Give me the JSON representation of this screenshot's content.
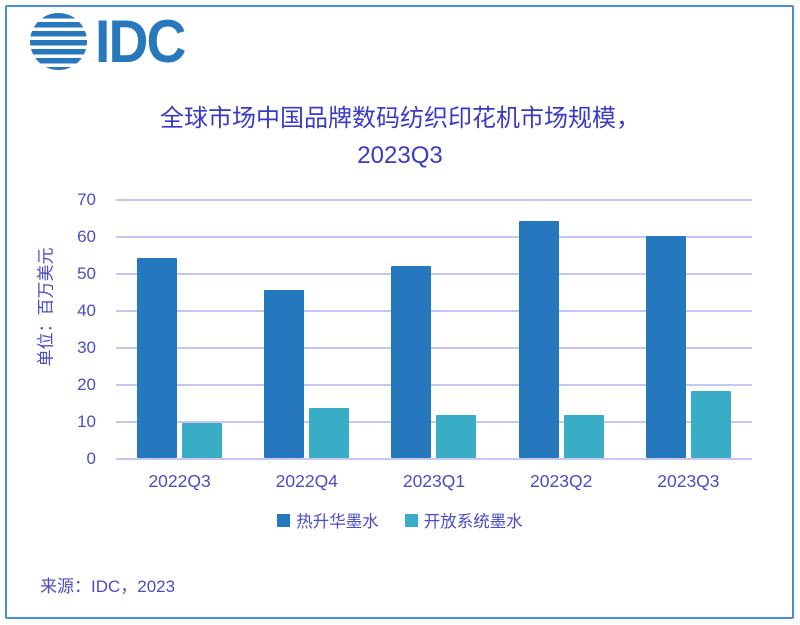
{
  "logo": {
    "text": "IDC"
  },
  "chart_data": {
    "type": "bar",
    "title_line1": "全球市场中国品牌数码纺织印花机市场规模，",
    "title_line2": "2023Q3",
    "categories": [
      "2022Q3",
      "2022Q4",
      "2023Q1",
      "2023Q2",
      "2023Q3"
    ],
    "series": [
      {
        "name": "热升华墨水",
        "color": "#2578BE",
        "values": [
          54,
          45.5,
          52,
          64,
          60
        ]
      },
      {
        "name": "开放系统墨水",
        "color": "#3AADC6",
        "values": [
          9.5,
          13.5,
          11.5,
          11.5,
          18
        ]
      }
    ],
    "xlabel": "",
    "ylabel": "单位：百万美元",
    "ylim": [
      0,
      70
    ],
    "yticks": [
      0,
      10,
      20,
      30,
      40,
      50,
      60,
      70
    ],
    "grid": true,
    "legend_position": "bottom"
  },
  "footer": {
    "source": "来源：IDC，2023"
  },
  "colors": {
    "accent_border": "#4A8FD3",
    "logo_blue": "#2878BE",
    "title_text": "#3A3AC8",
    "label_text": "#4C4CCB",
    "gridline": "#C6C6F2",
    "series1": "#2578BE",
    "series2": "#3AADC6"
  }
}
